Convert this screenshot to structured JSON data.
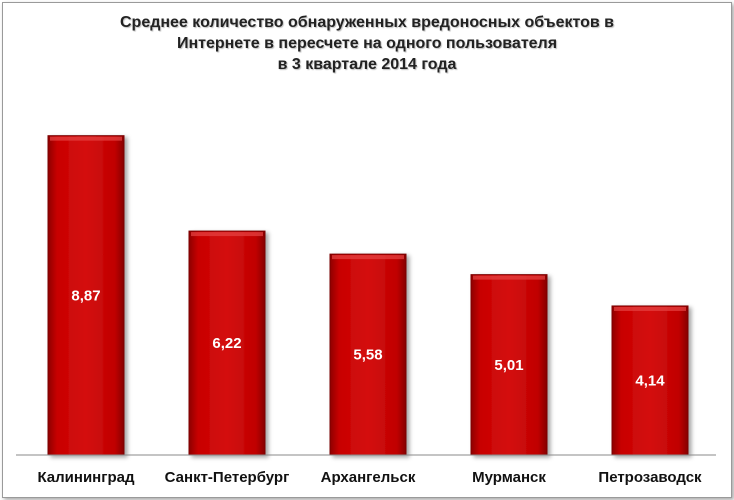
{
  "title_lines": [
    "Среднее количество обнаруженных вредоносных объектов в",
    "Интернете в пересчете на одного пользователя",
    "в 3 квартале 2014 года"
  ],
  "colors": {
    "bar": "#c00000",
    "bar_highlight": "#e64545",
    "bar_shadow": "#7a0000",
    "label_text": "#ffffff",
    "axis": "#808080"
  },
  "chart_data": {
    "type": "bar",
    "title": "Среднее количество обнаруженных вредоносных объектов в Интернете в пересчете на одного пользователя в 3 квартале 2014 года",
    "categories": [
      "Калининград",
      "Санкт-Петербург",
      "Архангельск",
      "Мурманск",
      "Петрозаводск"
    ],
    "values": [
      8.87,
      6.22,
      5.58,
      5.01,
      4.14
    ],
    "value_labels": [
      "8,87",
      "6,22",
      "5,58",
      "5,01",
      "4,14"
    ],
    "xlabel": "",
    "ylabel": "",
    "ylim": [
      0,
      10
    ],
    "grid": false,
    "legend": "none"
  }
}
